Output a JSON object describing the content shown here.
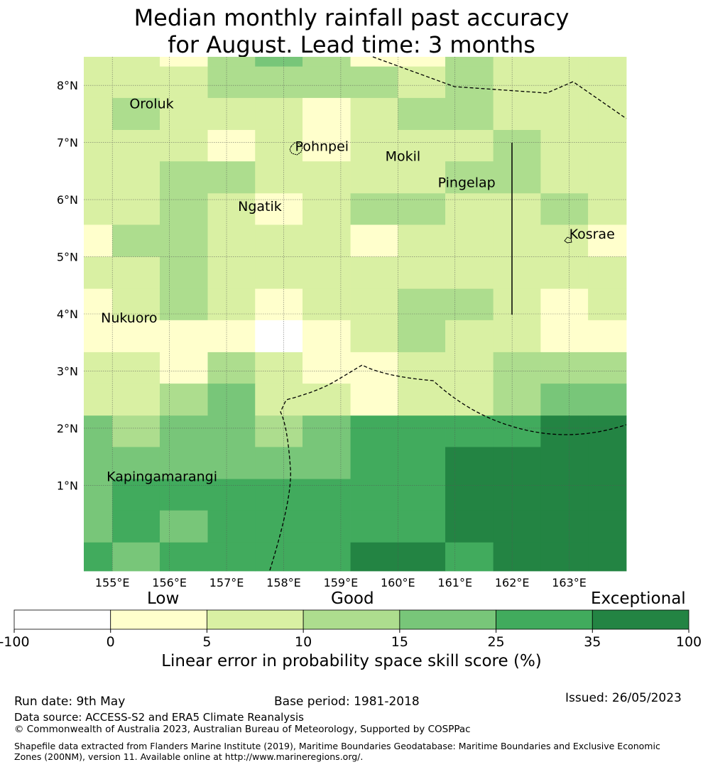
{
  "title": {
    "line1": "Median monthly rainfall past accuracy",
    "line2": "for August. Lead time: 3 months"
  },
  "map": {
    "lat_range": [
      -0.5,
      8.5
    ],
    "lon_range": [
      154.5,
      164.0
    ],
    "x_ticks": [
      {
        "value": 155,
        "label": "155°E"
      },
      {
        "value": 156,
        "label": "156°E"
      },
      {
        "value": 157,
        "label": "157°E"
      },
      {
        "value": 158,
        "label": "158°E"
      },
      {
        "value": 159,
        "label": "159°E"
      },
      {
        "value": 160,
        "label": "160°E"
      },
      {
        "value": 161,
        "label": "161°E"
      },
      {
        "value": 162,
        "label": "162°E"
      },
      {
        "value": 163,
        "label": "163°E"
      }
    ],
    "y_ticks": [
      {
        "value": 8,
        "label": "8°N"
      },
      {
        "value": 7,
        "label": "7°N"
      },
      {
        "value": 6,
        "label": "6°N"
      },
      {
        "value": 5,
        "label": "5°N"
      },
      {
        "value": 4,
        "label": "4°N"
      },
      {
        "value": 3,
        "label": "3°N"
      },
      {
        "value": 2,
        "label": "2°N"
      },
      {
        "value": 1,
        "label": "1°N"
      }
    ],
    "grid": true,
    "row_boundaries_lat": [
      8.5,
      8.33,
      7.78,
      7.22,
      6.67,
      6.11,
      5.56,
      5.0,
      4.44,
      3.89,
      3.33,
      2.78,
      2.22,
      1.67,
      1.11,
      0.56,
      0.0,
      -0.5
    ],
    "col_boundaries_lon": [
      154.5,
      155.0,
      155.83,
      156.67,
      157.5,
      158.33,
      159.17,
      160.0,
      160.83,
      161.67,
      162.5,
      163.33,
      164.0
    ],
    "cells": [
      [
        2,
        2,
        1,
        3,
        4,
        3,
        1,
        1,
        3,
        2,
        2,
        2
      ],
      [
        2,
        2,
        2,
        3,
        3,
        3,
        3,
        2,
        3,
        2,
        2,
        2
      ],
      [
        2,
        3,
        2,
        2,
        2,
        1,
        2,
        3,
        3,
        2,
        2,
        2
      ],
      [
        2,
        2,
        2,
        1,
        2,
        1,
        2,
        2,
        2,
        3,
        2,
        2
      ],
      [
        2,
        2,
        3,
        3,
        2,
        2,
        2,
        2,
        3,
        3,
        2,
        2
      ],
      [
        2,
        2,
        3,
        2,
        1,
        2,
        3,
        3,
        2,
        2,
        3,
        2
      ],
      [
        1,
        3,
        3,
        2,
        2,
        2,
        1,
        2,
        2,
        2,
        2,
        1
      ],
      [
        2,
        2,
        3,
        2,
        2,
        2,
        2,
        2,
        2,
        2,
        2,
        2
      ],
      [
        1,
        2,
        3,
        2,
        1,
        2,
        2,
        3,
        3,
        2,
        1,
        2
      ],
      [
        1,
        1,
        1,
        1,
        0,
        1,
        2,
        3,
        2,
        2,
        1,
        1
      ],
      [
        2,
        2,
        1,
        3,
        2,
        1,
        1,
        2,
        2,
        3,
        3,
        3
      ],
      [
        2,
        2,
        3,
        4,
        2,
        2,
        1,
        2,
        2,
        3,
        4,
        4
      ],
      [
        4,
        3,
        4,
        4,
        3,
        4,
        5,
        5,
        5,
        5,
        6,
        6
      ],
      [
        4,
        4,
        4,
        4,
        4,
        4,
        5,
        5,
        6,
        6,
        6,
        6
      ],
      [
        4,
        5,
        5,
        5,
        5,
        5,
        5,
        5,
        6,
        6,
        6,
        6
      ],
      [
        4,
        5,
        4,
        5,
        5,
        5,
        5,
        5,
        6,
        6,
        6,
        6
      ],
      [
        5,
        4,
        5,
        5,
        5,
        5,
        6,
        6,
        5,
        6,
        6,
        6
      ]
    ],
    "colors": [
      "#ffffff",
      "#ffffcc",
      "#d9f0a3",
      "#addd8e",
      "#78c679",
      "#41ab5d",
      "#238443"
    ],
    "places": [
      {
        "name": "Oroluk",
        "lon": 155.3,
        "lat": 7.6
      },
      {
        "name": "Pohnpei",
        "lon": 158.2,
        "lat": 6.85
      },
      {
        "name": "Mokil",
        "lon": 159.78,
        "lat": 6.68
      },
      {
        "name": "Pingelap",
        "lon": 160.7,
        "lat": 6.22
      },
      {
        "name": "Ngatik",
        "lon": 157.2,
        "lat": 5.8
      },
      {
        "name": "Kosrae",
        "lon": 163.0,
        "lat": 5.32
      },
      {
        "name": "Nukuoro",
        "lon": 154.8,
        "lat": 3.85
      },
      {
        "name": "Kapingamarangi",
        "lon": 154.9,
        "lat": 1.07
      }
    ]
  },
  "colorbar": {
    "tick_labels": [
      "-100",
      "0",
      "5",
      "10",
      "15",
      "25",
      "35",
      "100"
    ],
    "category_labels": [
      "Low",
      "Good",
      "Exceptional"
    ],
    "title": "Linear error in probability space skill score (%)"
  },
  "footer": {
    "run_date": "Run date: 9th May",
    "base_period": "Base period: 1981-2018",
    "issued": "Issued: 26/05/2023",
    "data_source": "Data source: ACCESS-S2 and ERA5 Climate Reanalysis",
    "copyright": "© Commonwealth of Australia 2023, Australian Bureau of Meteorology, Supported by COSPPac",
    "shapefile": "Shapefile data extracted from Flanders Marine Institute (2019), Maritime Boundaries Geodatabase: Maritime Boundaries and Exclusive Economic Zones (200NM), version 11. Available online at http://www.marineregions.org/."
  }
}
